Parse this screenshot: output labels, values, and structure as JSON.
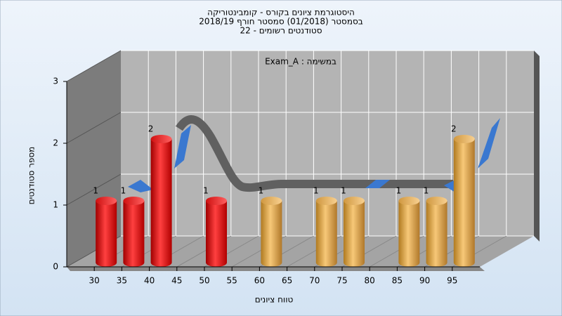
{
  "chart_data": {
    "type": "bar3d",
    "title": [
      "היסטוגרמת ציונים בקורס - קומבינטוריקה",
      "בסמסטר  (01/2018)  סמסטר חורף 2018/19",
      "סטודנטים רשומים - 22"
    ],
    "annotation": "Exam_A : במשימה",
    "xlabel": "טווח ציונים",
    "ylabel": "מספר סטודנטים",
    "x": [
      30,
      35,
      40,
      50,
      60,
      70,
      75,
      85,
      90,
      95
    ],
    "values": [
      1,
      1,
      2,
      1,
      1,
      1,
      1,
      1,
      1,
      2
    ],
    "colors": [
      "red",
      "red",
      "red",
      "red",
      "orange",
      "orange",
      "orange",
      "orange",
      "orange",
      "orange"
    ],
    "xlim": [
      25,
      100
    ],
    "xticks": [
      30,
      35,
      40,
      45,
      50,
      55,
      60,
      65,
      70,
      75,
      80,
      85,
      90,
      95
    ],
    "ylim": [
      0,
      3
    ],
    "yticks": [
      0,
      1,
      2,
      3
    ],
    "grid": true
  }
}
